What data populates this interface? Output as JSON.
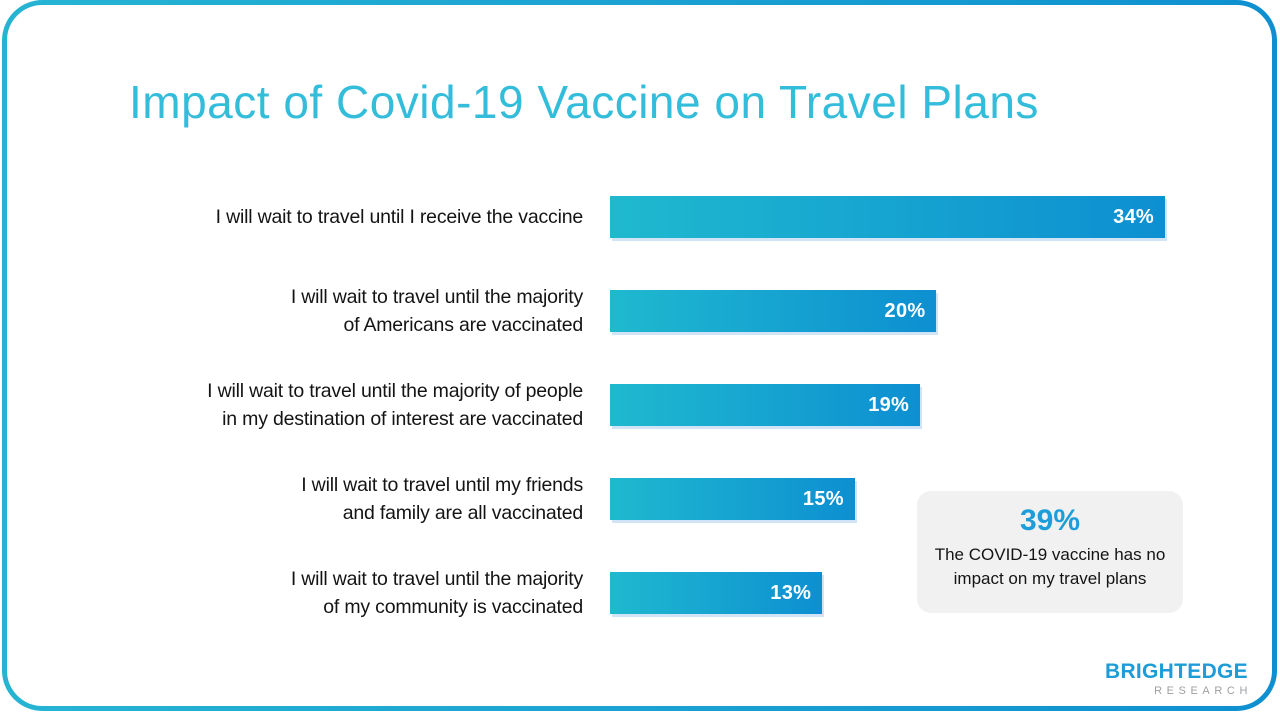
{
  "title": "Impact of Covid-19 Vaccine on Travel Plans",
  "chart_data": {
    "type": "bar",
    "orientation": "horizontal",
    "title": "Impact of Covid-19 Vaccine on Travel Plans",
    "categories": [
      "I will wait to travel until I receive the vaccine",
      "I will wait to travel until the majority\nof Americans are vaccinated",
      "I will wait to travel until the majority of people\nin my destination of interest are vaccinated",
      "I will wait to travel until my friends\nand family are all vaccinated",
      "I will wait to travel until the majority\nof my community is vaccinated"
    ],
    "values": [
      34,
      20,
      19,
      15,
      13
    ],
    "value_labels": [
      "34%",
      "20%",
      "19%",
      "15%",
      "13%"
    ],
    "unit": "%",
    "axis_max": 34,
    "grid": false,
    "legend": false,
    "value_label_position": "inside-end",
    "annotation": {
      "value": 39,
      "value_label": "39%",
      "text": "The COVID-19 vaccine has no\nimpact on my travel plans"
    }
  },
  "logo": {
    "brand": "BRIGHTEDGE",
    "subtitle": "RESEARCH"
  },
  "colors": {
    "accent_cyan": "#33BDDA",
    "bar_start": "#1FB9CF",
    "bar_end": "#0D8FD1",
    "border_start": "#26B4D3",
    "border_end": "#0E90D0",
    "callout_bg": "#F1F1F2",
    "accent_blue": "#1D9DDA",
    "logo_blue": "#1E9CD8",
    "logo_gray": "#9DA0A3",
    "text_dark": "#141414"
  }
}
